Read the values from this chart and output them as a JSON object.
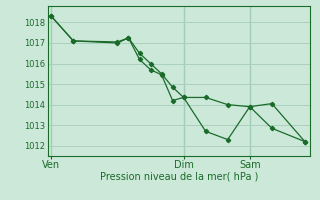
{
  "xlabel": "Pression niveau de la mer( hPa )",
  "bg_color": "#cce8d8",
  "grid_color": "#aad0c0",
  "line_color": "#1a6b2a",
  "spine_color": "#1a6b2a",
  "ylim": [
    1011.5,
    1018.8
  ],
  "yticks": [
    1012,
    1013,
    1014,
    1015,
    1016,
    1017,
    1018
  ],
  "xtick_labels": [
    "Ven",
    "Dim",
    "Sam"
  ],
  "xtick_positions": [
    0,
    12,
    18
  ],
  "vline_positions": [
    0,
    12,
    18
  ],
  "s1_x": [
    0,
    2,
    6,
    7,
    8,
    9,
    10,
    11,
    12,
    14,
    16,
    18,
    20,
    23
  ],
  "s1_y": [
    1018.3,
    1017.1,
    1017.0,
    1017.25,
    1016.5,
    1016.0,
    1015.5,
    1014.85,
    1014.35,
    1014.35,
    1014.0,
    1013.9,
    1014.05,
    1012.2
  ],
  "s2_x": [
    0,
    2,
    6,
    7,
    8,
    9,
    10,
    11,
    12,
    14,
    16,
    18,
    20,
    23
  ],
  "s2_y": [
    1018.3,
    1017.1,
    1017.05,
    1017.25,
    1016.2,
    1015.7,
    1015.45,
    1014.2,
    1014.35,
    1012.7,
    1012.3,
    1013.9,
    1012.85,
    1012.2
  ],
  "xlim": [
    -0.3,
    23.5
  ]
}
